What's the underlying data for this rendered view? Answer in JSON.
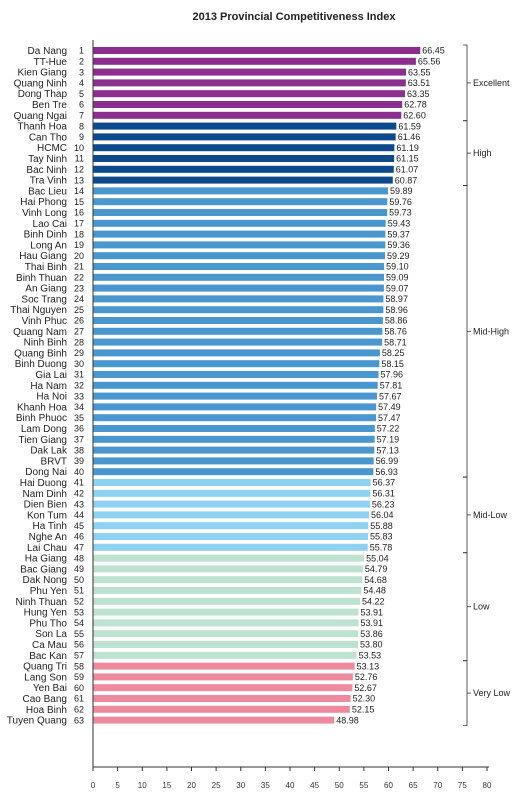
{
  "chart_data": {
    "type": "bar",
    "orientation": "horizontal",
    "title": "2013 Provincial Competitiveness Index",
    "xlim": [
      0,
      80
    ],
    "xticks": [
      0,
      5,
      10,
      15,
      20,
      25,
      30,
      35,
      40,
      45,
      50,
      55,
      60,
      65,
      70,
      75,
      80
    ],
    "grid": false,
    "categories": [
      "Da Nang",
      "TT-Hue",
      "Kien Giang",
      "Quang Ninh",
      "Dong Thap",
      "Ben Tre",
      "Quang Ngai",
      "Thanh Hoa",
      "Can Tho",
      "HCMC",
      "Tay Ninh",
      "Bac Ninh",
      "Tra Vinh",
      "Bac Lieu",
      "Hai Phong",
      "Vinh Long",
      "Lao Cai",
      "Binh Dinh",
      "Long An",
      "Hau Giang",
      "Thai Binh",
      "Binh Thuan",
      "An Giang",
      "Soc Trang",
      "Thai Nguyen",
      "Vinh Phuc",
      "Quang Nam",
      "Ninh Binh",
      "Quang Binh",
      "Binh Duong",
      "Gia Lai",
      "Ha Nam",
      "Ha Noi",
      "Khanh Hoa",
      "Binh Phuoc",
      "Lam Dong",
      "Tien Giang",
      "Dak Lak",
      "BRVT",
      "Dong Nai",
      "Hai Duong",
      "Nam Dinh",
      "Dien Bien",
      "Kon Tum",
      "Ha Tinh",
      "Nghe An",
      "Lai Chau",
      "Ha Giang",
      "Bac Giang",
      "Dak Nong",
      "Phu Yen",
      "Ninh Thuan",
      "Hung Yen",
      "Phu Tho",
      "Son La",
      "Ca Mau",
      "Bac Kan",
      "Quang Tri",
      "Lang Son",
      "Yen Bai",
      "Cao Bang",
      "Hoa Binh",
      "Tuyen Quang"
    ],
    "ranks": [
      "1",
      "2",
      "3",
      "4",
      "5",
      "6",
      "7",
      "8",
      "9",
      "10",
      "11",
      "12",
      "13",
      "14",
      "15",
      "16",
      "17",
      "18",
      "19",
      "20",
      "21",
      "22",
      "23",
      "24",
      "25",
      "26",
      "27",
      "28",
      "29",
      "30",
      "31",
      "32",
      "33",
      "34",
      "35",
      "36",
      "37",
      "38",
      "39",
      "40",
      "41",
      "42",
      "43",
      "44",
      "45",
      "46",
      "47",
      "48",
      "49",
      "50",
      "51",
      "52",
      "53",
      "54",
      "55",
      "56",
      "57",
      "58",
      "59",
      "60",
      "61",
      "62",
      "63"
    ],
    "values": [
      66.45,
      65.56,
      63.55,
      63.51,
      63.35,
      62.78,
      62.6,
      61.59,
      61.46,
      61.19,
      61.15,
      61.07,
      60.87,
      59.89,
      59.76,
      59.73,
      59.43,
      59.37,
      59.36,
      59.29,
      59.1,
      59.09,
      59.07,
      58.97,
      58.96,
      58.86,
      58.76,
      58.71,
      58.25,
      58.15,
      57.96,
      57.81,
      57.67,
      57.49,
      57.47,
      57.22,
      57.19,
      57.13,
      56.99,
      56.93,
      56.37,
      56.31,
      56.23,
      56.04,
      55.88,
      55.83,
      55.78,
      55.04,
      54.79,
      54.68,
      54.48,
      54.22,
      53.91,
      53.91,
      53.86,
      53.8,
      53.53,
      53.13,
      52.76,
      52.67,
      52.3,
      52.15,
      48.98
    ],
    "value_labels": [
      "66.45",
      "65.56",
      "63.55",
      "63.51",
      "63.35",
      "62.78",
      "62.60",
      "61.59",
      "61.46",
      "61.19",
      "61.15",
      "61.07",
      "60.87",
      "59.89",
      "59.76",
      "59.73",
      "59.43",
      "59.37",
      "59.36",
      "59.29",
      "59.10",
      "59.09",
      "59.07",
      "58.97",
      "58.96",
      "58.86",
      "58.76",
      "58.71",
      "58.25",
      "58.15",
      "57.96",
      "57.81",
      "57.67",
      "57.49",
      "57.47",
      "57.22",
      "57.19",
      "57.13",
      "56.99",
      "56.93",
      "56.37",
      "56.31",
      "56.23",
      "56.04",
      "55.88",
      "55.83",
      "55.78",
      "55.04",
      "54.79",
      "54.68",
      "54.48",
      "54.22",
      "53.91",
      "53.91",
      "53.86",
      "53.80",
      "53.53",
      "53.13",
      "52.76",
      "52.67",
      "52.30",
      "52.15",
      "48.98"
    ],
    "groups": [
      {
        "name": "Excellent",
        "first": 0,
        "last": 6,
        "color": "#8b2e8e"
      },
      {
        "name": "High",
        "first": 7,
        "last": 12,
        "color": "#0d4a8c"
      },
      {
        "name": "Mid-High",
        "first": 13,
        "last": 39,
        "color": "#4a97cf"
      },
      {
        "name": "Mid-Low",
        "first": 40,
        "last": 46,
        "color": "#8fd1f0"
      },
      {
        "name": "Low",
        "first": 47,
        "last": 56,
        "color": "#bde2cf"
      },
      {
        "name": "Very Low",
        "first": 57,
        "last": 62,
        "color": "#ee8a9d"
      }
    ]
  }
}
